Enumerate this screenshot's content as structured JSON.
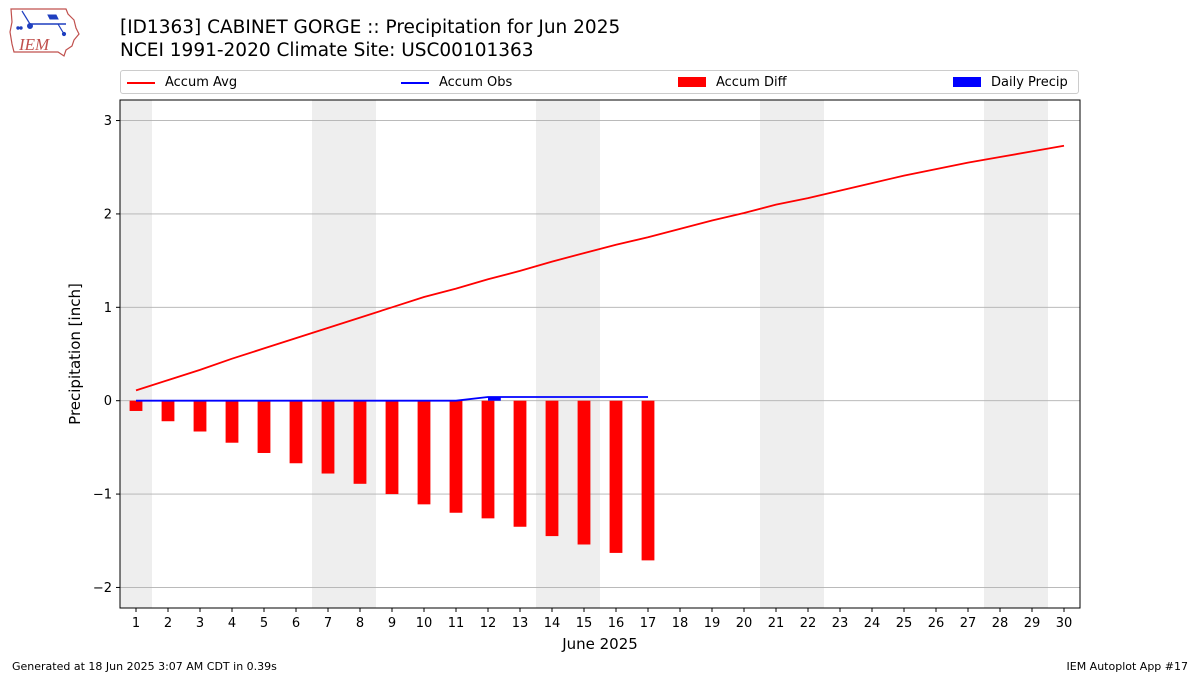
{
  "header": {
    "title_line1": "[ID1363] CABINET GORGE :: Precipitation for Jun 2025",
    "title_line2": "NCEI 1991-2020 Climate Site: USC00101363",
    "logo_text": "IEM"
  },
  "footer": {
    "left": "Generated at 18 Jun 2025 3:07 AM CDT in 0.39s",
    "right": "IEM Autoplot App #17"
  },
  "colors": {
    "accum_avg": "#ff0000",
    "accum_obs": "#0000ff",
    "accum_diff": "#ff0000",
    "daily_precip": "#0000ff",
    "weekend_shade": "#eeeeee",
    "grid": "#b0b0b0"
  },
  "chart_data": {
    "type": "bar",
    "xlabel": "June 2025",
    "ylabel": "Precipitation [inch]",
    "xlim": [
      0.5,
      30.5
    ],
    "ylim": [
      -2.22,
      3.22
    ],
    "yticks": [
      3,
      2,
      1,
      0,
      -1,
      -2
    ],
    "ytick_labels": [
      "3",
      "2",
      "1",
      "0",
      "−1",
      "−2"
    ],
    "xticks": [
      1,
      2,
      3,
      4,
      5,
      6,
      7,
      8,
      9,
      10,
      11,
      12,
      13,
      14,
      15,
      16,
      17,
      18,
      19,
      20,
      21,
      22,
      23,
      24,
      25,
      26,
      27,
      28,
      29,
      30
    ],
    "grid": "y",
    "legend_position": "top",
    "shaded_days": [
      [
        0.5,
        1.5
      ],
      [
        6.5,
        8.5
      ],
      [
        13.5,
        15.5
      ],
      [
        20.5,
        22.5
      ],
      [
        27.5,
        29.5
      ]
    ],
    "series": [
      {
        "name": "Accum Avg",
        "type": "line",
        "x": [
          1,
          2,
          3,
          4,
          5,
          6,
          7,
          8,
          9,
          10,
          11,
          12,
          13,
          14,
          15,
          16,
          17,
          18,
          19,
          20,
          21,
          22,
          23,
          24,
          25,
          26,
          27,
          28,
          29,
          30
        ],
        "values": [
          0.11,
          0.22,
          0.33,
          0.45,
          0.56,
          0.67,
          0.78,
          0.89,
          1.0,
          1.11,
          1.2,
          1.3,
          1.39,
          1.49,
          1.58,
          1.67,
          1.75,
          1.84,
          1.93,
          2.01,
          2.1,
          2.17,
          2.25,
          2.33,
          2.41,
          2.48,
          2.55,
          2.61,
          2.67,
          2.73
        ]
      },
      {
        "name": "Accum Obs",
        "type": "line",
        "x": [
          1,
          2,
          3,
          4,
          5,
          6,
          7,
          8,
          9,
          10,
          11,
          12,
          13,
          14,
          15,
          16,
          17
        ],
        "values": [
          0,
          0,
          0,
          0,
          0,
          0,
          0,
          0,
          0,
          0,
          0,
          0.04,
          0.04,
          0.04,
          0.04,
          0.04,
          0.04
        ]
      },
      {
        "name": "Accum Diff",
        "type": "bar",
        "x": [
          1,
          2,
          3,
          4,
          5,
          6,
          7,
          8,
          9,
          10,
          11,
          12,
          13,
          14,
          15,
          16,
          17
        ],
        "values": [
          -0.11,
          -0.22,
          -0.33,
          -0.45,
          -0.56,
          -0.67,
          -0.78,
          -0.89,
          -1.0,
          -1.11,
          -1.2,
          -1.26,
          -1.35,
          -1.45,
          -1.54,
          -1.63,
          -1.71
        ]
      },
      {
        "name": "Daily Precip",
        "type": "bar",
        "x": [
          12
        ],
        "values": [
          0.04
        ]
      }
    ]
  }
}
